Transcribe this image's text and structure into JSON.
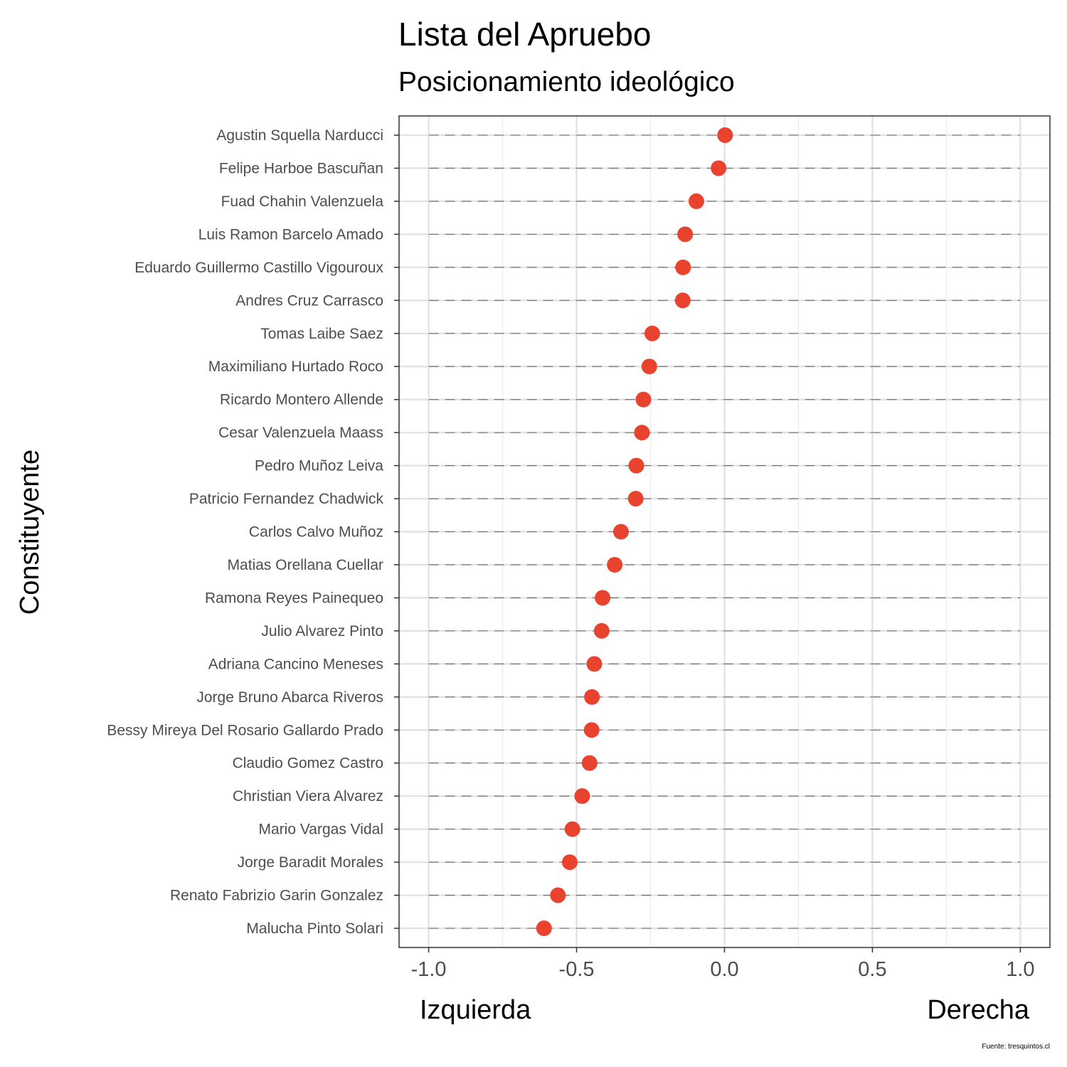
{
  "chart_data": {
    "type": "scatter",
    "title": "Lista del Apruebo",
    "subtitle": "Posicionamiento ideológico",
    "ylabel": "Constituyente",
    "xlim": [
      -1.1,
      1.1
    ],
    "xticks": [
      -1.0,
      -0.5,
      0.0,
      0.5,
      1.0
    ],
    "xtick_labels": [
      "-1.0",
      "-0.5",
      "0.0",
      "0.5",
      "1.0"
    ],
    "left_label": "Izquierda",
    "right_label": "Derecha",
    "caption": "Fuente: tresquintos.cl",
    "point_color": "#E8432F",
    "grid": true,
    "categories": [
      "Agustin Squella Narducci",
      "Felipe Harboe Bascuñan",
      "Fuad Chahin Valenzuela",
      "Luis Ramon Barcelo Amado",
      "Eduardo Guillermo Castillo Vigouroux",
      "Andres Cruz Carrasco",
      "Tomas Laibe Saez",
      "Maximiliano Hurtado Roco",
      "Ricardo Montero Allende",
      "Cesar Valenzuela Maass",
      "Pedro Muñoz Leiva",
      "Patricio Fernandez Chadwick",
      "Carlos Calvo Muñoz",
      "Matias Orellana Cuellar",
      "Ramona Reyes Painequeo",
      "Julio Alvarez Pinto",
      "Adriana Cancino Meneses",
      "Jorge Bruno Abarca Riveros",
      "Bessy Mireya Del Rosario Gallardo Prado",
      "Claudio Gomez Castro",
      "Christian Viera Alvarez",
      "Mario Vargas Vidal",
      "Jorge Baradit Morales",
      "Renato Fabrizio Garin Gonzalez",
      "Malucha Pinto Solari"
    ],
    "values": [
      0.002,
      -0.02,
      -0.095,
      -0.133,
      -0.14,
      -0.141,
      -0.244,
      -0.254,
      -0.274,
      -0.279,
      -0.298,
      -0.3,
      -0.35,
      -0.371,
      -0.412,
      -0.415,
      -0.44,
      -0.448,
      -0.449,
      -0.456,
      -0.481,
      -0.514,
      -0.523,
      -0.563,
      -0.61
    ]
  }
}
